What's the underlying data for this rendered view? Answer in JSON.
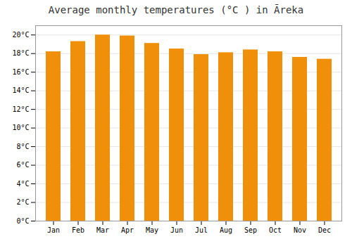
{
  "chart_data": {
    "type": "bar",
    "title": "Average monthly temperatures (°C ) in Āreka",
    "categories": [
      "Jan",
      "Feb",
      "Mar",
      "Apr",
      "May",
      "Jun",
      "Jul",
      "Aug",
      "Sep",
      "Oct",
      "Nov",
      "Dec"
    ],
    "values": [
      18.2,
      19.3,
      20.0,
      19.9,
      19.1,
      18.5,
      17.9,
      18.1,
      18.4,
      18.2,
      17.6,
      17.4
    ],
    "color": "#F0900A",
    "ylim": [
      0,
      21
    ],
    "yticks": [
      {
        "value": 0,
        "label": "0°C"
      },
      {
        "value": 2,
        "label": "2°C"
      },
      {
        "value": 4,
        "label": "4°C"
      },
      {
        "value": 6,
        "label": "6°C"
      },
      {
        "value": 8,
        "label": "8°C"
      },
      {
        "value": 10,
        "label": "10°C"
      },
      {
        "value": 12,
        "label": "12°C"
      },
      {
        "value": 14,
        "label": "14°C"
      },
      {
        "value": 16,
        "label": "16°C"
      },
      {
        "value": 18,
        "label": "18°C"
      },
      {
        "value": 20,
        "label": "20°C"
      }
    ],
    "grid": true
  }
}
